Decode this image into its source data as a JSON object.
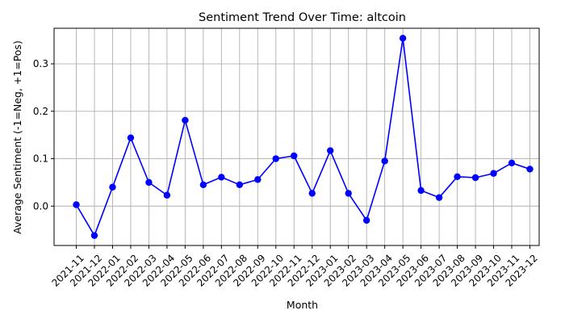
{
  "chart_data": {
    "type": "line",
    "title": "Sentiment Trend Over Time: altcoin",
    "xlabel": "Month",
    "ylabel": "Average Sentiment (-1=Neg, +1=Pos)",
    "x": [
      "2021-11",
      "2021-12",
      "2022-01",
      "2022-02",
      "2022-03",
      "2022-04",
      "2022-05",
      "2022-06",
      "2022-07",
      "2022-08",
      "2022-09",
      "2022-10",
      "2022-11",
      "2022-12",
      "2023-01",
      "2023-02",
      "2023-03",
      "2023-04",
      "2023-05",
      "2023-06",
      "2023-07",
      "2023-08",
      "2023-09",
      "2023-10",
      "2023-11",
      "2023-12"
    ],
    "series": [
      {
        "values": [
          0.003,
          -0.062,
          0.04,
          0.144,
          0.05,
          0.023,
          0.181,
          0.045,
          0.061,
          0.045,
          0.056,
          0.1,
          0.106,
          0.027,
          0.117,
          0.027,
          -0.03,
          0.095,
          0.354,
          0.033,
          0.018,
          0.062,
          0.06,
          0.069,
          0.091,
          0.078
        ],
        "color": "#0000ff",
        "marker": "circle"
      }
    ],
    "yticks": [
      0.0,
      0.1,
      0.2,
      0.3
    ],
    "ytick_labels": [
      "0.0",
      "0.1",
      "0.2",
      "0.3"
    ],
    "ylim": [
      -0.083,
      0.375
    ],
    "grid": true,
    "legend": "none"
  }
}
